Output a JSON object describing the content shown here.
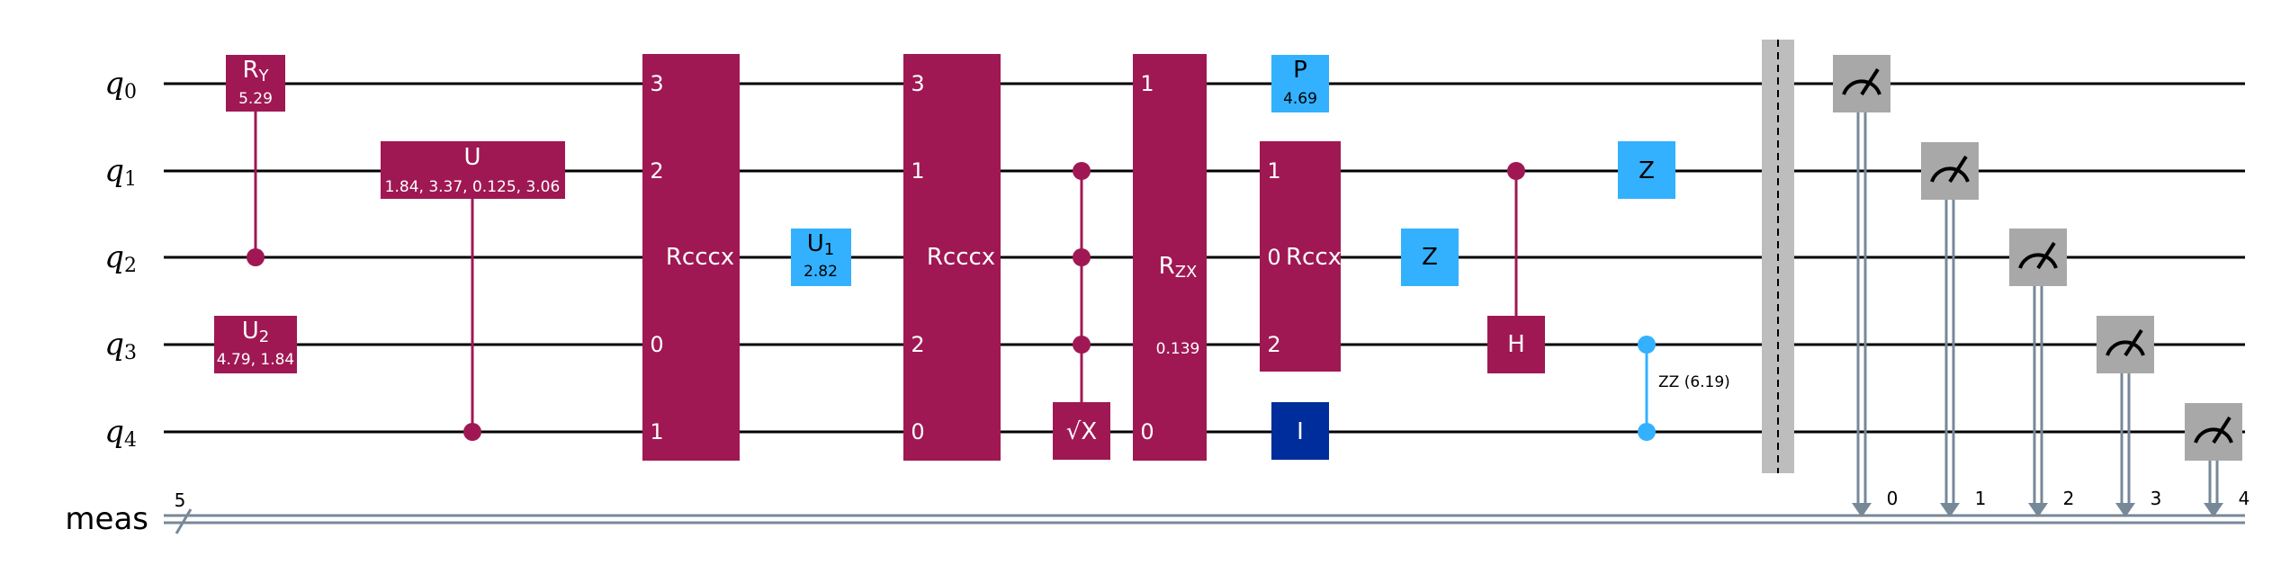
{
  "colors": {
    "multi": "#9F1853",
    "light": "#33B1FF",
    "dark": "#002D9C",
    "measure": "#A8A8A8",
    "classical": "#778899",
    "barrier": "#BDBDBD",
    "wire": "#000000"
  },
  "circuit": {
    "qubits": [
      {
        "name": "q",
        "index": "0"
      },
      {
        "name": "q",
        "index": "1"
      },
      {
        "name": "q",
        "index": "2"
      },
      {
        "name": "q",
        "index": "3"
      },
      {
        "name": "q",
        "index": "4"
      }
    ],
    "creg": {
      "name": "meas",
      "size": "5"
    },
    "gates": {
      "ry": {
        "base": "R",
        "sub": "Y",
        "param": "5.29"
      },
      "u2": {
        "base": "U",
        "sub": "2",
        "param": "4.79, 1.84"
      },
      "u": {
        "label": "U",
        "param": "1.84, 3.37, 0.125, 3.06"
      },
      "rcccx1": {
        "label": "Rcccx",
        "pins": [
          "3",
          "2",
          "0",
          "1"
        ]
      },
      "u1": {
        "base": "U",
        "sub": "1",
        "param": "2.82"
      },
      "rcccx2": {
        "label": "Rcccx",
        "pins": [
          "3",
          "1",
          "2",
          "0"
        ]
      },
      "sx": {
        "label": "√X"
      },
      "rzx": {
        "base": "R",
        "sub": "ZX",
        "param": "0.139",
        "pins": [
          "1",
          "0"
        ]
      },
      "p": {
        "label": "P",
        "param": "4.69"
      },
      "rccx": {
        "label": "Rccx",
        "pins": [
          "1",
          "0",
          "2"
        ]
      },
      "i": {
        "label": "I"
      },
      "z1": {
        "label": "Z"
      },
      "h": {
        "label": "H"
      },
      "z2": {
        "label": "Z"
      },
      "zz": {
        "label": "ZZ (6.19)"
      }
    },
    "measure_bits": [
      "0",
      "1",
      "2",
      "3",
      "4"
    ]
  }
}
